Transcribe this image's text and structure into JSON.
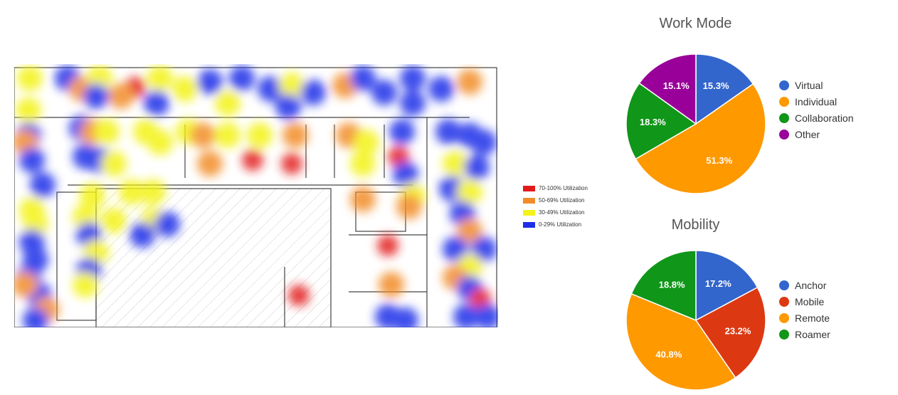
{
  "utilization_legend": [
    {
      "label": "70-100% Utilization",
      "color": "#e31a1c"
    },
    {
      "label": "50-69% Utilization",
      "color": "#f28c28"
    },
    {
      "label": "30-49% Utilization",
      "color": "#f3f318"
    },
    {
      "label": "0-29% Utilization",
      "color": "#1f2ee8"
    }
  ],
  "chart_data": [
    {
      "type": "heatmap",
      "title": "",
      "description_levels": [
        "70-100% Utilization",
        "50-69% Utilization",
        "30-49% Utilization",
        "0-29% Utilization"
      ]
    },
    {
      "type": "pie",
      "title": "Work Mode",
      "legend_position": "right",
      "slices": [
        {
          "label": "Virtual",
          "value": 15.3,
          "color": "#3366cc"
        },
        {
          "label": "Individual",
          "value": 51.3,
          "color": "#ff9900"
        },
        {
          "label": "Collaboration",
          "value": 18.3,
          "color": "#109618"
        },
        {
          "label": "Other",
          "value": 15.1,
          "color": "#990099"
        }
      ]
    },
    {
      "type": "pie",
      "title": "Mobility",
      "legend_position": "right",
      "slices": [
        {
          "label": "Anchor",
          "value": 17.2,
          "color": "#3366cc"
        },
        {
          "label": "Mobile",
          "value": 23.2,
          "color": "#dc3912"
        },
        {
          "label": "Remote",
          "value": 40.8,
          "color": "#ff9900"
        },
        {
          "label": "Roamer",
          "value": 18.8,
          "color": "#109618"
        }
      ]
    }
  ]
}
